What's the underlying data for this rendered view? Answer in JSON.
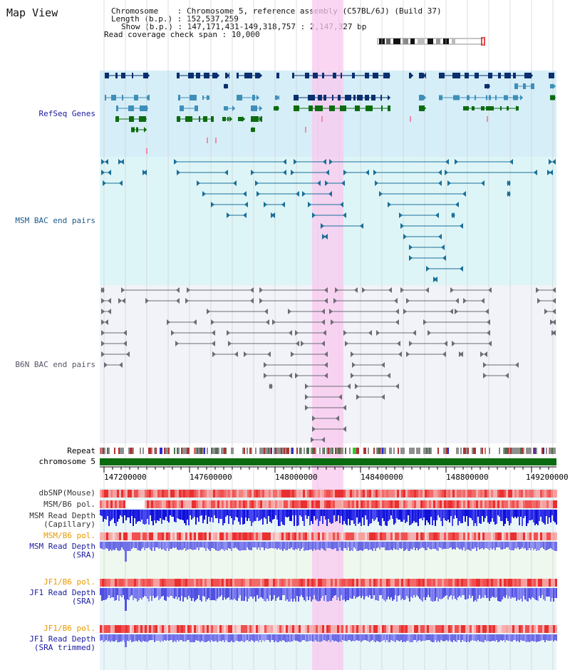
{
  "view": {
    "title": "Map View"
  },
  "info": {
    "chromosome_key": "Chromosome",
    "chromosome_val": "Chromosome 5, reference assembly (C57BL/6J) (Build 37)",
    "length_key": "Length (b.p.)",
    "length_val": "152,537,259",
    "show_key": "Show (b.p.)",
    "show_val": "147,171,431-149,318,757 : 2,147,327 bp",
    "span_key": "Read coverage check span",
    "span_val": "10,000"
  },
  "tracks": {
    "refseq": "RefSeq Genes",
    "msm_bac": "MSM BAC end pairs",
    "b6n_bac": "B6N BAC end pairs",
    "repeat": "Repeat",
    "chromosome": "chromosome 5",
    "dbsnp": "dbSNP(Mouse)",
    "msm_b6_pol_1": "MSM/B6 pol.",
    "msm_read_depth_cap_1": "MSM Read Depth",
    "msm_read_depth_cap_2": "(Capillary)",
    "msm_b6_pol_2": "MSM/B6 pol.",
    "msm_read_depth_sra_1": "MSM Read Depth",
    "msm_read_depth_sra_2": "(SRA)",
    "jf1_b6_pol_1": "JF1/B6 pol.",
    "jf1_read_depth_sra_1": "JF1 Read Depth",
    "jf1_read_depth_sra_2": "(SRA)",
    "jf1_b6_pol_2": "JF1/B6 pol.",
    "jf1_read_depth_trim_1": "JF1 Read Depth",
    "jf1_read_depth_trim_2": "(SRA trimmed)"
  },
  "axis": {
    "ticks": [
      "147200000",
      "147600000",
      "148000000",
      "148400000",
      "148800000",
      "149200000"
    ]
  },
  "colors": {
    "refseq_label": "#1a1aa0",
    "msm_label": "#1a5a8a",
    "b6n_label": "#555566",
    "pol_label": "#e89a00",
    "depth_label": "#1a1aa0",
    "highlight": "#f9c8ef",
    "chromosome_bar": "#0b6b10",
    "refseq_bg": "#d6eef8",
    "msm_bg": "#def5f7",
    "b6n_bg": "#f1f3f8",
    "depth_bg": "#e8f6f8"
  }
}
